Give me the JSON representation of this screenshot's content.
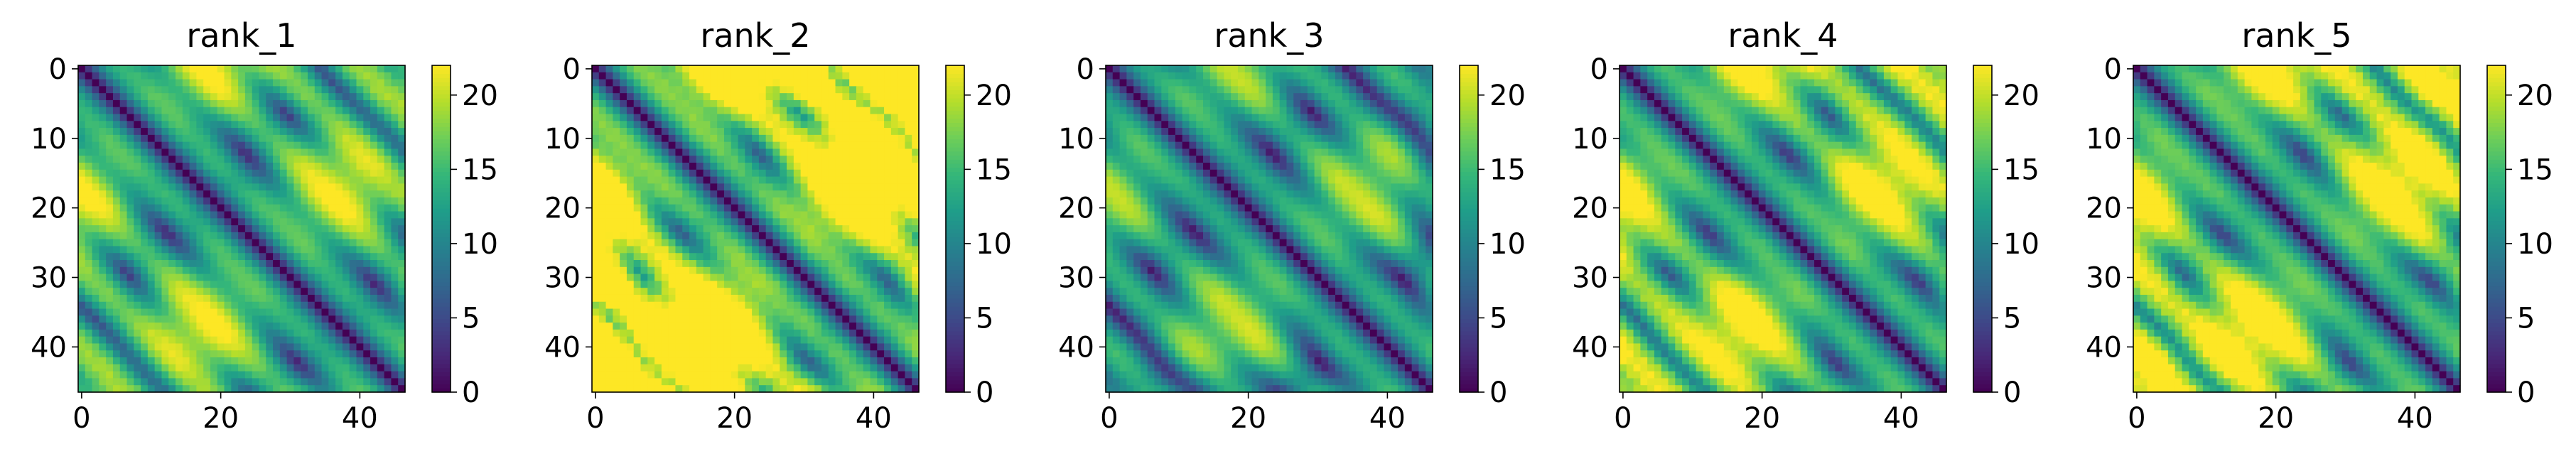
{
  "chart_data": [
    {
      "type": "heatmap",
      "title": "rank_1",
      "size": 47,
      "xticks": [
        0,
        20,
        40
      ],
      "yticks": [
        0,
        10,
        20,
        30,
        40
      ],
      "colorbar_ticks": [
        0,
        5,
        10,
        15,
        20
      ],
      "vmin": 0,
      "vmax": 22,
      "bright_bias": 1.0,
      "corner_bias": 0.3,
      "seed": 11
    },
    {
      "type": "heatmap",
      "title": "rank_2",
      "size": 47,
      "xticks": [
        0,
        20,
        40
      ],
      "yticks": [
        0,
        10,
        20,
        30,
        40
      ],
      "colorbar_ticks": [
        0,
        5,
        10,
        15,
        20
      ],
      "vmin": 0,
      "vmax": 22,
      "bright_bias": 3.5,
      "corner_bias": 1.4,
      "seed": 23
    },
    {
      "type": "heatmap",
      "title": "rank_3",
      "size": 47,
      "xticks": [
        0,
        20,
        40
      ],
      "yticks": [
        0,
        10,
        20,
        30,
        40
      ],
      "colorbar_ticks": [
        0,
        5,
        10,
        15,
        20
      ],
      "vmin": 0,
      "vmax": 22,
      "bright_bias": 0.2,
      "corner_bias": 0.2,
      "seed": 37
    },
    {
      "type": "heatmap",
      "title": "rank_4",
      "size": 47,
      "xticks": [
        0,
        20,
        40
      ],
      "yticks": [
        0,
        10,
        20,
        30,
        40
      ],
      "colorbar_ticks": [
        0,
        5,
        10,
        15,
        20
      ],
      "vmin": 0,
      "vmax": 22,
      "bright_bias": 1.6,
      "corner_bias": 0.6,
      "seed": 41
    },
    {
      "type": "heatmap",
      "title": "rank_5",
      "size": 47,
      "xticks": [
        0,
        20,
        40
      ],
      "yticks": [
        0,
        10,
        20,
        30,
        40
      ],
      "colorbar_ticks": [
        0,
        5,
        10,
        15,
        20
      ],
      "vmin": 0,
      "vmax": 22,
      "bright_bias": 2.0,
      "corner_bias": 0.8,
      "seed": 53
    }
  ],
  "colormap": {
    "name": "viridis",
    "stops": [
      "#440154",
      "#482878",
      "#3e4989",
      "#31688e",
      "#26828e",
      "#1f9e89",
      "#35b779",
      "#6ece58",
      "#b5de2b",
      "#fde725"
    ]
  }
}
